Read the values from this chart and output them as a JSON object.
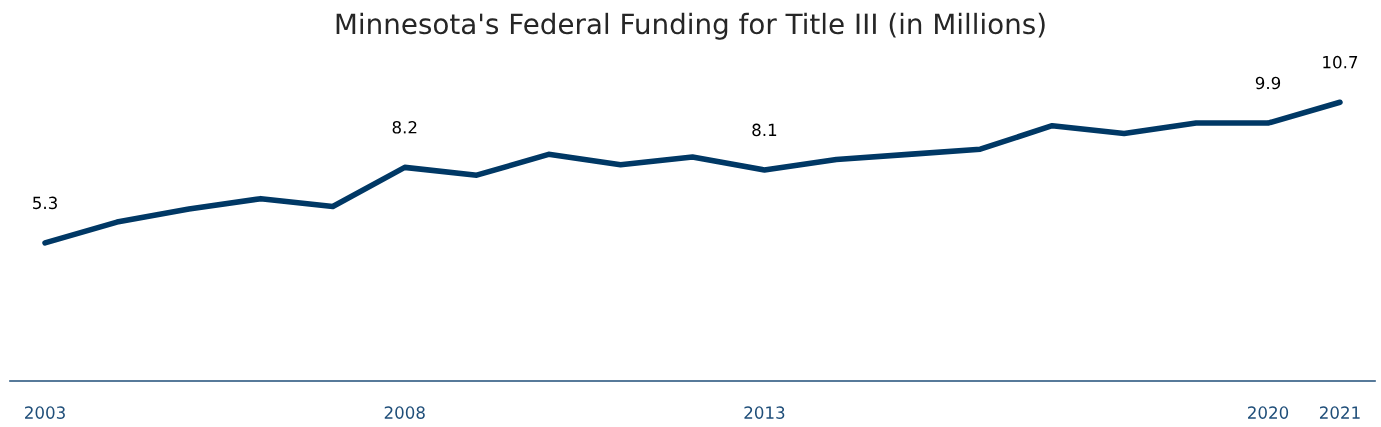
{
  "chart_data": {
    "type": "line",
    "title": "Minnesota's Federal Funding for Title III (in Millions)",
    "categories": [
      "2003",
      null,
      null,
      null,
      null,
      "2008",
      null,
      null,
      null,
      null,
      "2013",
      null,
      null,
      null,
      null,
      null,
      null,
      "2020",
      "2021"
    ],
    "series": [
      {
        "color": "#003865",
        "values": [
          5.3,
          6.1,
          6.6,
          7.0,
          6.7,
          8.2,
          7.9,
          8.7,
          8.3,
          8.6,
          8.1,
          8.5,
          8.7,
          8.9,
          9.8,
          9.5,
          9.9,
          9.9,
          10.7
        ],
        "value_labels": [
          "5.3",
          null,
          null,
          null,
          null,
          "8.2",
          null,
          null,
          null,
          null,
          "8.1",
          null,
          null,
          null,
          null,
          null,
          null,
          "9.9",
          "10.7"
        ]
      }
    ],
    "tick_labels": "x",
    "grid": false,
    "legend": false,
    "marker": "none",
    "line_style": "solid"
  }
}
